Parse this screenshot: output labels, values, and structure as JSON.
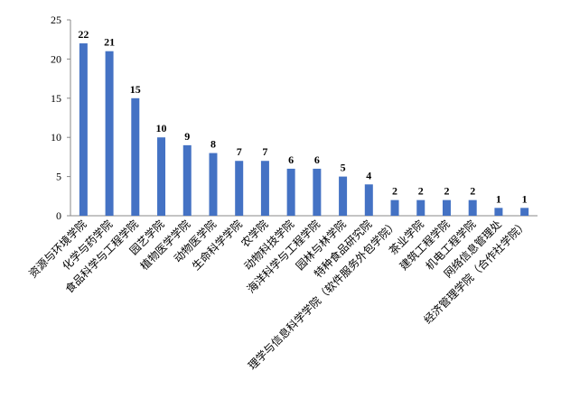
{
  "chart_data": {
    "type": "bar",
    "categories": [
      "资源与环境学院",
      "化学与药学院",
      "食品科学与工程学院",
      "园艺学院",
      "植物医学学院",
      "动物医学院",
      "生命科学学院",
      "农学院",
      "动物科技学院",
      "海洋科学与工程学院",
      "园林与林学院",
      "特种食品研究院",
      "理学与信息科学学院（软件服务外包学院）",
      "茶业学院",
      "建筑工程学院",
      "机电工程学院",
      "网络信息管理处",
      "经济管理学院（合作社学院）"
    ],
    "values": [
      22,
      21,
      15,
      10,
      9,
      8,
      7,
      7,
      6,
      6,
      5,
      4,
      2,
      2,
      2,
      2,
      1,
      1
    ],
    "color": "#4472c4",
    "ylim": [
      0,
      25
    ],
    "yticks": [
      0,
      5,
      10,
      15,
      20,
      25
    ],
    "grid": false
  }
}
